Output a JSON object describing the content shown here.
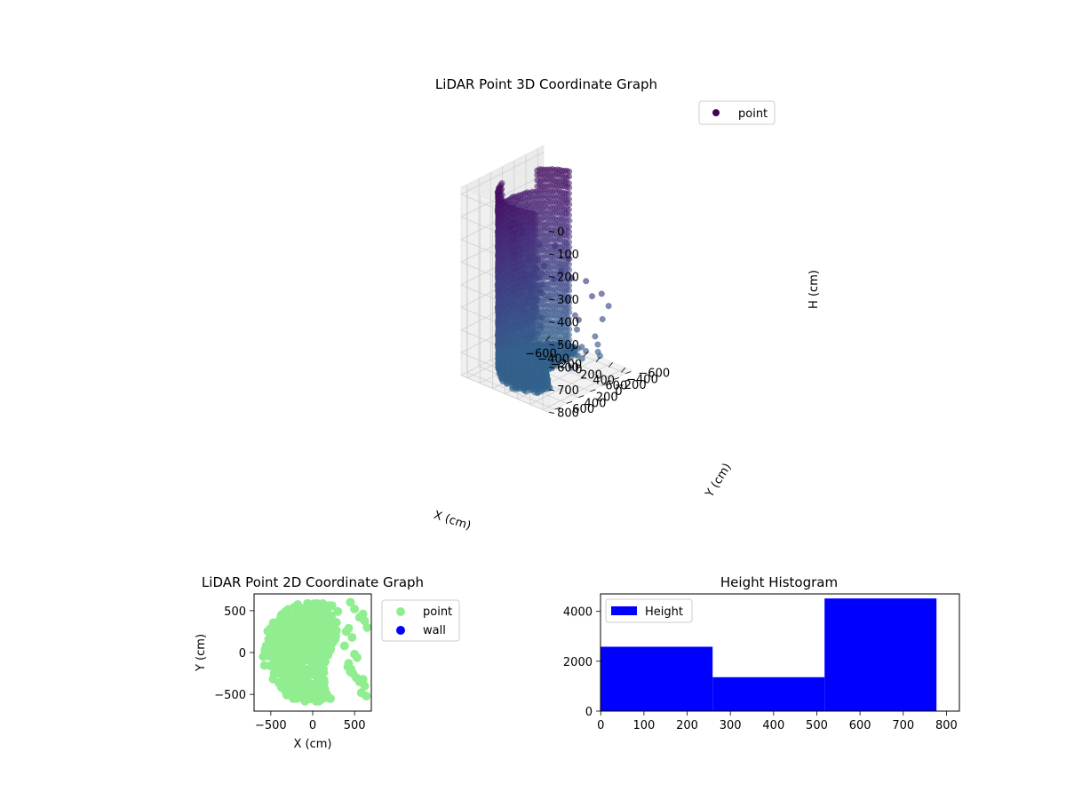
{
  "chart_data": [
    {
      "type": "scatter",
      "projection": "3d",
      "title": "LiDAR Point 3D Coordinate Graph",
      "xlabel": "X (cm)",
      "ylabel": "Y (cm)",
      "zlabel": "H (cm)",
      "xlim": [
        -700,
        700
      ],
      "ylim": [
        -700,
        700
      ],
      "zlim": [
        800,
        0
      ],
      "z_axis_inverted": true,
      "xticks": [
        -600,
        -400,
        -200,
        0,
        200,
        400,
        600
      ],
      "yticks": [
        -600,
        -400,
        -200,
        0,
        200,
        400,
        600
      ],
      "zticks": [
        0,
        100,
        200,
        300,
        400,
        500,
        600,
        700,
        800
      ],
      "colormap": "viridis (colored by height)",
      "grid": true,
      "legend": {
        "entries": [
          "point"
        ],
        "placement": "upper right"
      },
      "series": [
        {
          "name": "point",
          "marker_color": "#440154",
          "description": "wall points on a ring (radius ~560 cm, angles ~60°–255°), heights 0–780 cm; dense dark cluster near top; floor points filling disc; sparse outliers at x 300–600, y -600–600"
        }
      ]
    },
    {
      "type": "scatter",
      "title": "LiDAR Point 2D Coordinate Graph",
      "xlabel": "X (cm)",
      "ylabel": "Y (cm)",
      "xlim": [
        -700,
        700
      ],
      "ylim": [
        -700,
        700
      ],
      "xticks": [
        -500,
        0,
        500
      ],
      "yticks": [
        -500,
        0,
        500
      ],
      "legend": {
        "entries": [
          "point",
          "wall"
        ],
        "placement": "outside right"
      },
      "series": [
        {
          "name": "point",
          "color": "#90ee90"
        },
        {
          "name": "wall",
          "color": "#0000ff"
        }
      ]
    },
    {
      "type": "bar",
      "subtype": "histogram",
      "title": "Height Histogram",
      "xlim": [
        -0.5,
        830
      ],
      "ylim": [
        0,
        4700
      ],
      "xticks": [
        0,
        100,
        200,
        300,
        400,
        500,
        600,
        700,
        800
      ],
      "yticks": [
        0,
        2000,
        4000
      ],
      "legend": {
        "entries": [
          "Height"
        ],
        "placement": "upper left"
      },
      "bins": [
        {
          "from": 0,
          "to": 259,
          "count": 2580
        },
        {
          "from": 259,
          "to": 518,
          "count": 1360
        },
        {
          "from": 518,
          "to": 777,
          "count": 4520
        }
      ],
      "color": "#0000ff"
    }
  ]
}
